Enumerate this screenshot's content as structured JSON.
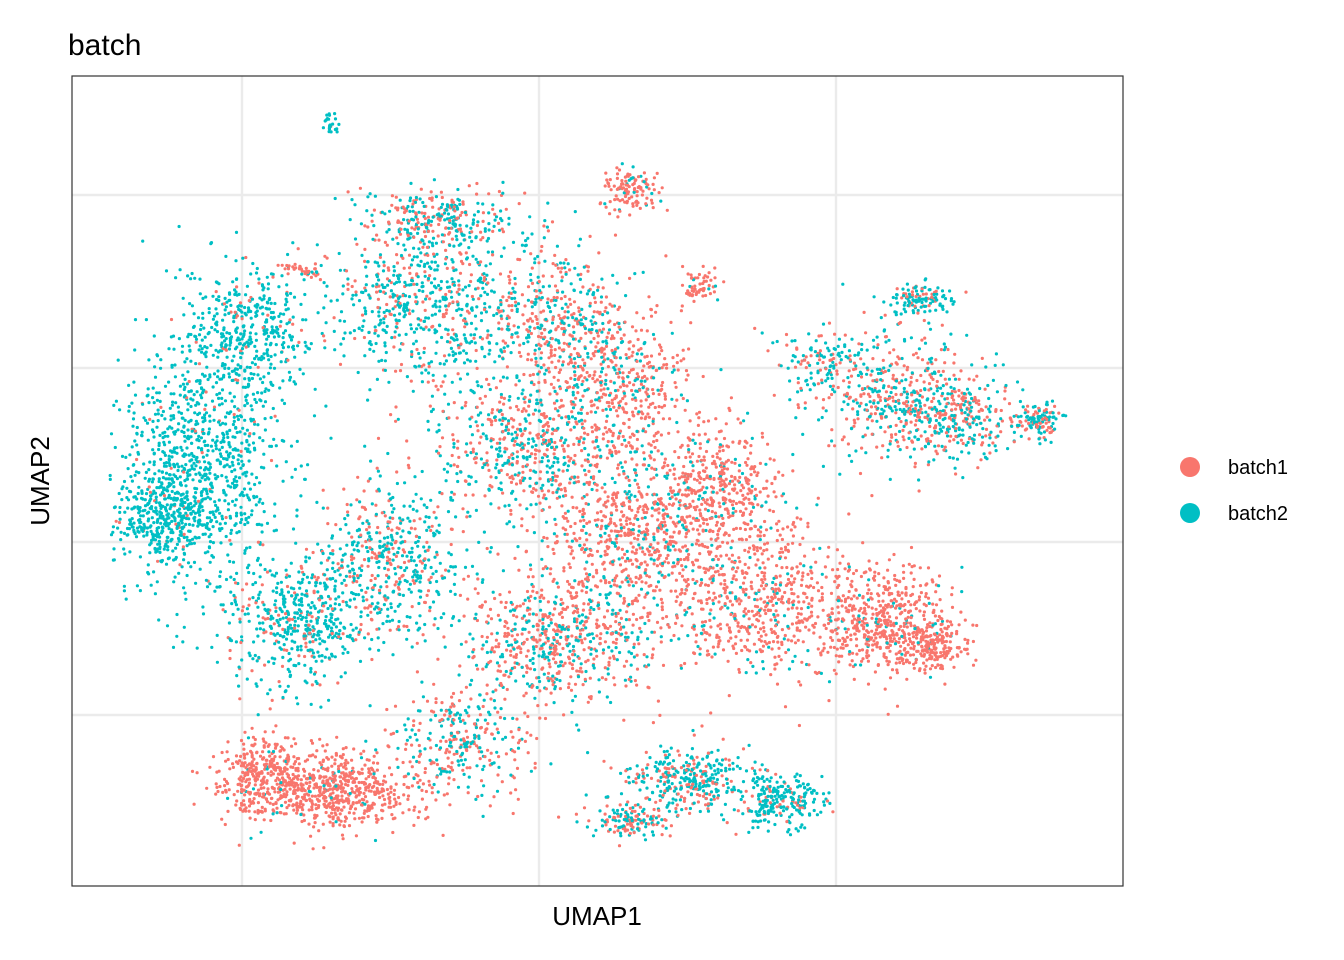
{
  "chart_data": {
    "type": "scatter",
    "title": "batch",
    "xlabel": "UMAP1",
    "ylabel": "UMAP2",
    "xlim": [
      0,
      100
    ],
    "ylim": [
      0,
      100
    ],
    "grid": true,
    "tick_labels": false,
    "legend_position": "right",
    "series": [
      {
        "name": "batch1",
        "color": "#F8766D",
        "density_note": "dominant in lower-middle, right and bottom-left regions"
      },
      {
        "name": "batch2",
        "color": "#00BFC4",
        "density_note": "dominant in left and upper-left regions"
      }
    ]
  }
}
